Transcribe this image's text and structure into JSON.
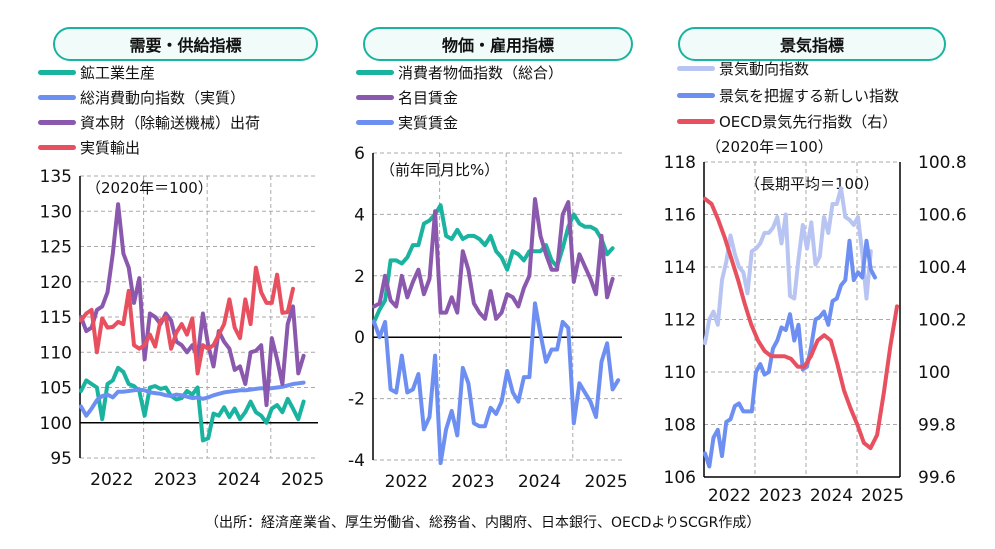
{
  "panels": [
    {
      "title": "需要・供給指標",
      "unit_note": "（2020年＝100）",
      "legend": [
        "鉱工業生産",
        "総消費動向指数（実質）",
        "資本財（除輸送機械）出荷",
        "実質輸出"
      ],
      "chart_data": {
        "type": "line",
        "x_start": "2022-01",
        "frequency": "monthly",
        "x_ticks": [
          "2022",
          "2023",
          "2024",
          "2025"
        ],
        "ylim": [
          95,
          135
        ],
        "y_ticks": [
          95,
          100,
          105,
          110,
          115,
          120,
          125,
          130,
          135
        ],
        "grid": true,
        "series": [
          {
            "name": "鉱工業生産",
            "color": "#19b3a0",
            "values": [
              104.5,
              106,
              105.5,
              105,
              100.5,
              105.5,
              106,
              107.8,
              107.2,
              105.5,
              105.2,
              104.5,
              101,
              105,
              105.2,
              104.8,
              105,
              103.8,
              103.3,
              103.5,
              104.5,
              104,
              105,
              97.5,
              97.8,
              101.3,
              101,
              102.2,
              100.8,
              102,
              100.5,
              101.5,
              103,
              101.5,
              101,
              100,
              102,
              102.5,
              101.5,
              103.4,
              102,
              100.5,
              103
            ]
          },
          {
            "name": "総消費動向指数（実質）",
            "color": "#6e8ff2",
            "values": [
              102.3,
              101,
              102,
              103.2,
              103.8,
              104,
              103.6,
              104.4,
              104.4,
              104.5,
              104.6,
              104.7,
              104.6,
              104.3,
              104.2,
              104.1,
              103.9,
              103.8,
              104,
              103.9,
              103.7,
              103.5,
              103.6,
              103.4,
              103.6,
              103.9,
              104.1,
              104.3,
              104.4,
              104.5,
              104.6,
              104.6,
              104.7,
              104.8,
              104.9,
              104.8,
              104.9,
              105,
              105.1,
              105.3,
              105.5,
              105.6,
              105.7
            ]
          },
          {
            "name": "資本財（除輸送機械）出荷",
            "color": "#8a58ad",
            "values": [
              115,
              113,
              113.5,
              116,
              116.5,
              118.5,
              124,
              131,
              124,
              122,
              117,
              120.5,
              109,
              115.5,
              115,
              114,
              115.5,
              114.5,
              111.5,
              111,
              110,
              111,
              109.2,
              115.5,
              111,
              108,
              113,
              111.5,
              110.5,
              107.5,
              108,
              105.5,
              110,
              110.2,
              111,
              102.5,
              112,
              109,
              105.5,
              114,
              116.5,
              107,
              109.5
            ]
          },
          {
            "name": "実質輸出",
            "color": "#e8505f",
            "values": [
              114.5,
              115.5,
              116,
              110,
              114.8,
              113.5,
              113.6,
              114.3,
              114,
              118.7,
              111,
              110.5,
              111,
              112.5,
              110.8,
              114.5,
              115,
              110.5,
              112.8,
              114,
              112.5,
              114.8,
              107,
              111,
              110.5,
              111,
              112.5,
              114,
              117.5,
              113.5,
              112,
              117.5,
              114,
              122,
              118.5,
              117,
              117,
              121,
              115.6,
              115.7,
              119
            ]
          }
        ]
      }
    },
    {
      "title": "物価・雇用指標",
      "unit_note": "（前年同月比%）",
      "legend": [
        "消費者物価指数（総合）",
        "名目賃金",
        "実質賃金"
      ],
      "chart_data": {
        "type": "line",
        "x_start": "2022-01",
        "frequency": "monthly",
        "x_ticks": [
          "2022",
          "2023",
          "2024",
          "2025"
        ],
        "ylim": [
          -4,
          6
        ],
        "y_ticks": [
          -4,
          -2,
          0,
          2,
          4,
          6
        ],
        "grid": true,
        "series": [
          {
            "name": "消費者物価指数（総合）",
            "color": "#19b3a0",
            "values": [
              0.5,
              0.9,
              1.2,
              2.5,
              2.5,
              2.4,
              2.6,
              3.0,
              3.0,
              3.7,
              3.8,
              4.0,
              4.3,
              3.3,
              3.2,
              3.5,
              3.2,
              3.3,
              3.3,
              3.2,
              3.0,
              3.3,
              2.8,
              2.6,
              2.2,
              2.8,
              2.7,
              2.5,
              2.8,
              2.8,
              2.8,
              3.0,
              2.5,
              2.3,
              2.9,
              3.6,
              4.0,
              3.7,
              3.6,
              3.6,
              3.5,
              3.2,
              2.7,
              2.9
            ]
          },
          {
            "name": "名目賃金",
            "color": "#8a58ad",
            "values": [
              1.0,
              1.1,
              2.0,
              1.2,
              1.0,
              2.0,
              1.3,
              1.8,
              2.2,
              1.4,
              1.9,
              4.1,
              0.8,
              0.8,
              1.3,
              0.8,
              2.8,
              2.2,
              1.1,
              0.8,
              0.6,
              1.5,
              0.6,
              0.8,
              1.4,
              1.3,
              1.0,
              1.6,
              2.0,
              4.5,
              3.3,
              2.7,
              2.2,
              2.2,
              4.0,
              4.4,
              1.8,
              2.7,
              2.3,
              1.9,
              1.4,
              3.3,
              1.3,
              1.9
            ]
          },
          {
            "name": "実質賃金",
            "color": "#6e8ff2",
            "values": [
              0.5,
              0,
              0.5,
              -1.7,
              -1.8,
              -0.6,
              -1.8,
              -1.7,
              -1.2,
              -3.0,
              -2.6,
              -0.6,
              -4.1,
              -3.0,
              -2.4,
              -3.2,
              -1.0,
              -1.5,
              -2.8,
              -2.9,
              -2.9,
              -2.3,
              -2.5,
              -2.1,
              -1.1,
              -1.8,
              -2.1,
              -1.3,
              -1.3,
              1.1,
              0.1,
              -0.8,
              -0.4,
              -0.4,
              0.5,
              0.3,
              -2.8,
              -1.5,
              -1.8,
              -2.1,
              -2.6,
              -0.8,
              -0.2,
              -1.7,
              -1.4
            ]
          }
        ]
      }
    },
    {
      "title": "景気指標",
      "unit_note": "（2020年＝100）",
      "unit_note_right": "（長期平均＝100）",
      "legend": [
        "景気動向指数",
        "景気を把握する新しい指数",
        "OECD景気先行指数（右）"
      ],
      "chart_data": {
        "type": "line",
        "x_start": "2022-01",
        "frequency": "monthly",
        "x_ticks": [
          "2022",
          "2023",
          "2024",
          "2025"
        ],
        "ylim": [
          106,
          118
        ],
        "y_ticks": [
          106,
          108,
          110,
          112,
          114,
          116,
          118
        ],
        "ylim_right": [
          99.6,
          100.8
        ],
        "y_ticks_right": [
          "99.6",
          "99.8",
          "100",
          "100.2",
          "100.4",
          "100.6",
          "100.8"
        ],
        "grid": true,
        "series": [
          {
            "name": "景気動向指数",
            "color": "#b8c4f2",
            "axis": "left",
            "values": [
              111.1,
              112,
              112.3,
              111.8,
              113.5,
              114.2,
              115.2,
              114.5,
              114,
              113.8,
              113,
              114.6,
              114.7,
              114.9,
              115.3,
              115.3,
              115.5,
              115.9,
              114.9,
              116,
              112.9,
              112.8,
              114.3,
              115.6,
              114.7,
              115.7,
              114.1,
              114.4,
              115.9,
              115.3,
              116.4,
              116.4,
              117,
              115.9,
              115.8,
              115.6,
              115.9,
              114.5,
              112.8,
              114.6
            ]
          },
          {
            "name": "景気を把握する新しい指数",
            "color": "#6e8ff2",
            "axis": "left",
            "values": [
              106.9,
              106.4,
              107.5,
              107.8,
              106.8,
              108.1,
              108.2,
              108.7,
              108.8,
              108.5,
              108.5,
              108.5,
              110,
              110.3,
              109.9,
              110,
              110.9,
              111.2,
              111.7,
              111.6,
              112.2,
              111.2,
              111.8,
              110.1,
              110.2,
              111,
              112,
              112.1,
              112.3,
              111.8,
              112.7,
              112.8,
              113.3,
              113.5,
              115,
              113.5,
              113.8,
              113.6,
              115,
              113.9,
              113.6
            ]
          },
          {
            "name": "OECD景気先行指数（右）",
            "color": "#e8505f",
            "axis": "right",
            "values": [
              100.66,
              100.64,
              100.58,
              100.51,
              100.43,
              100.35,
              100.26,
              100.18,
              100.12,
              100.08,
              100.06,
              100.06,
              100.06,
              100.05,
              100.02,
              100.02,
              100.06,
              100.12,
              100.14,
              100.12,
              100.03,
              99.93,
              99.86,
              99.8,
              99.73,
              99.71,
              99.76,
              99.92,
              100.1,
              100.25
            ]
          }
        ]
      }
    }
  ],
  "source": "（出所：経済産業省、厚生労働省、総務省、内閣府、日本銀行、OECDよりSCGR作成）"
}
